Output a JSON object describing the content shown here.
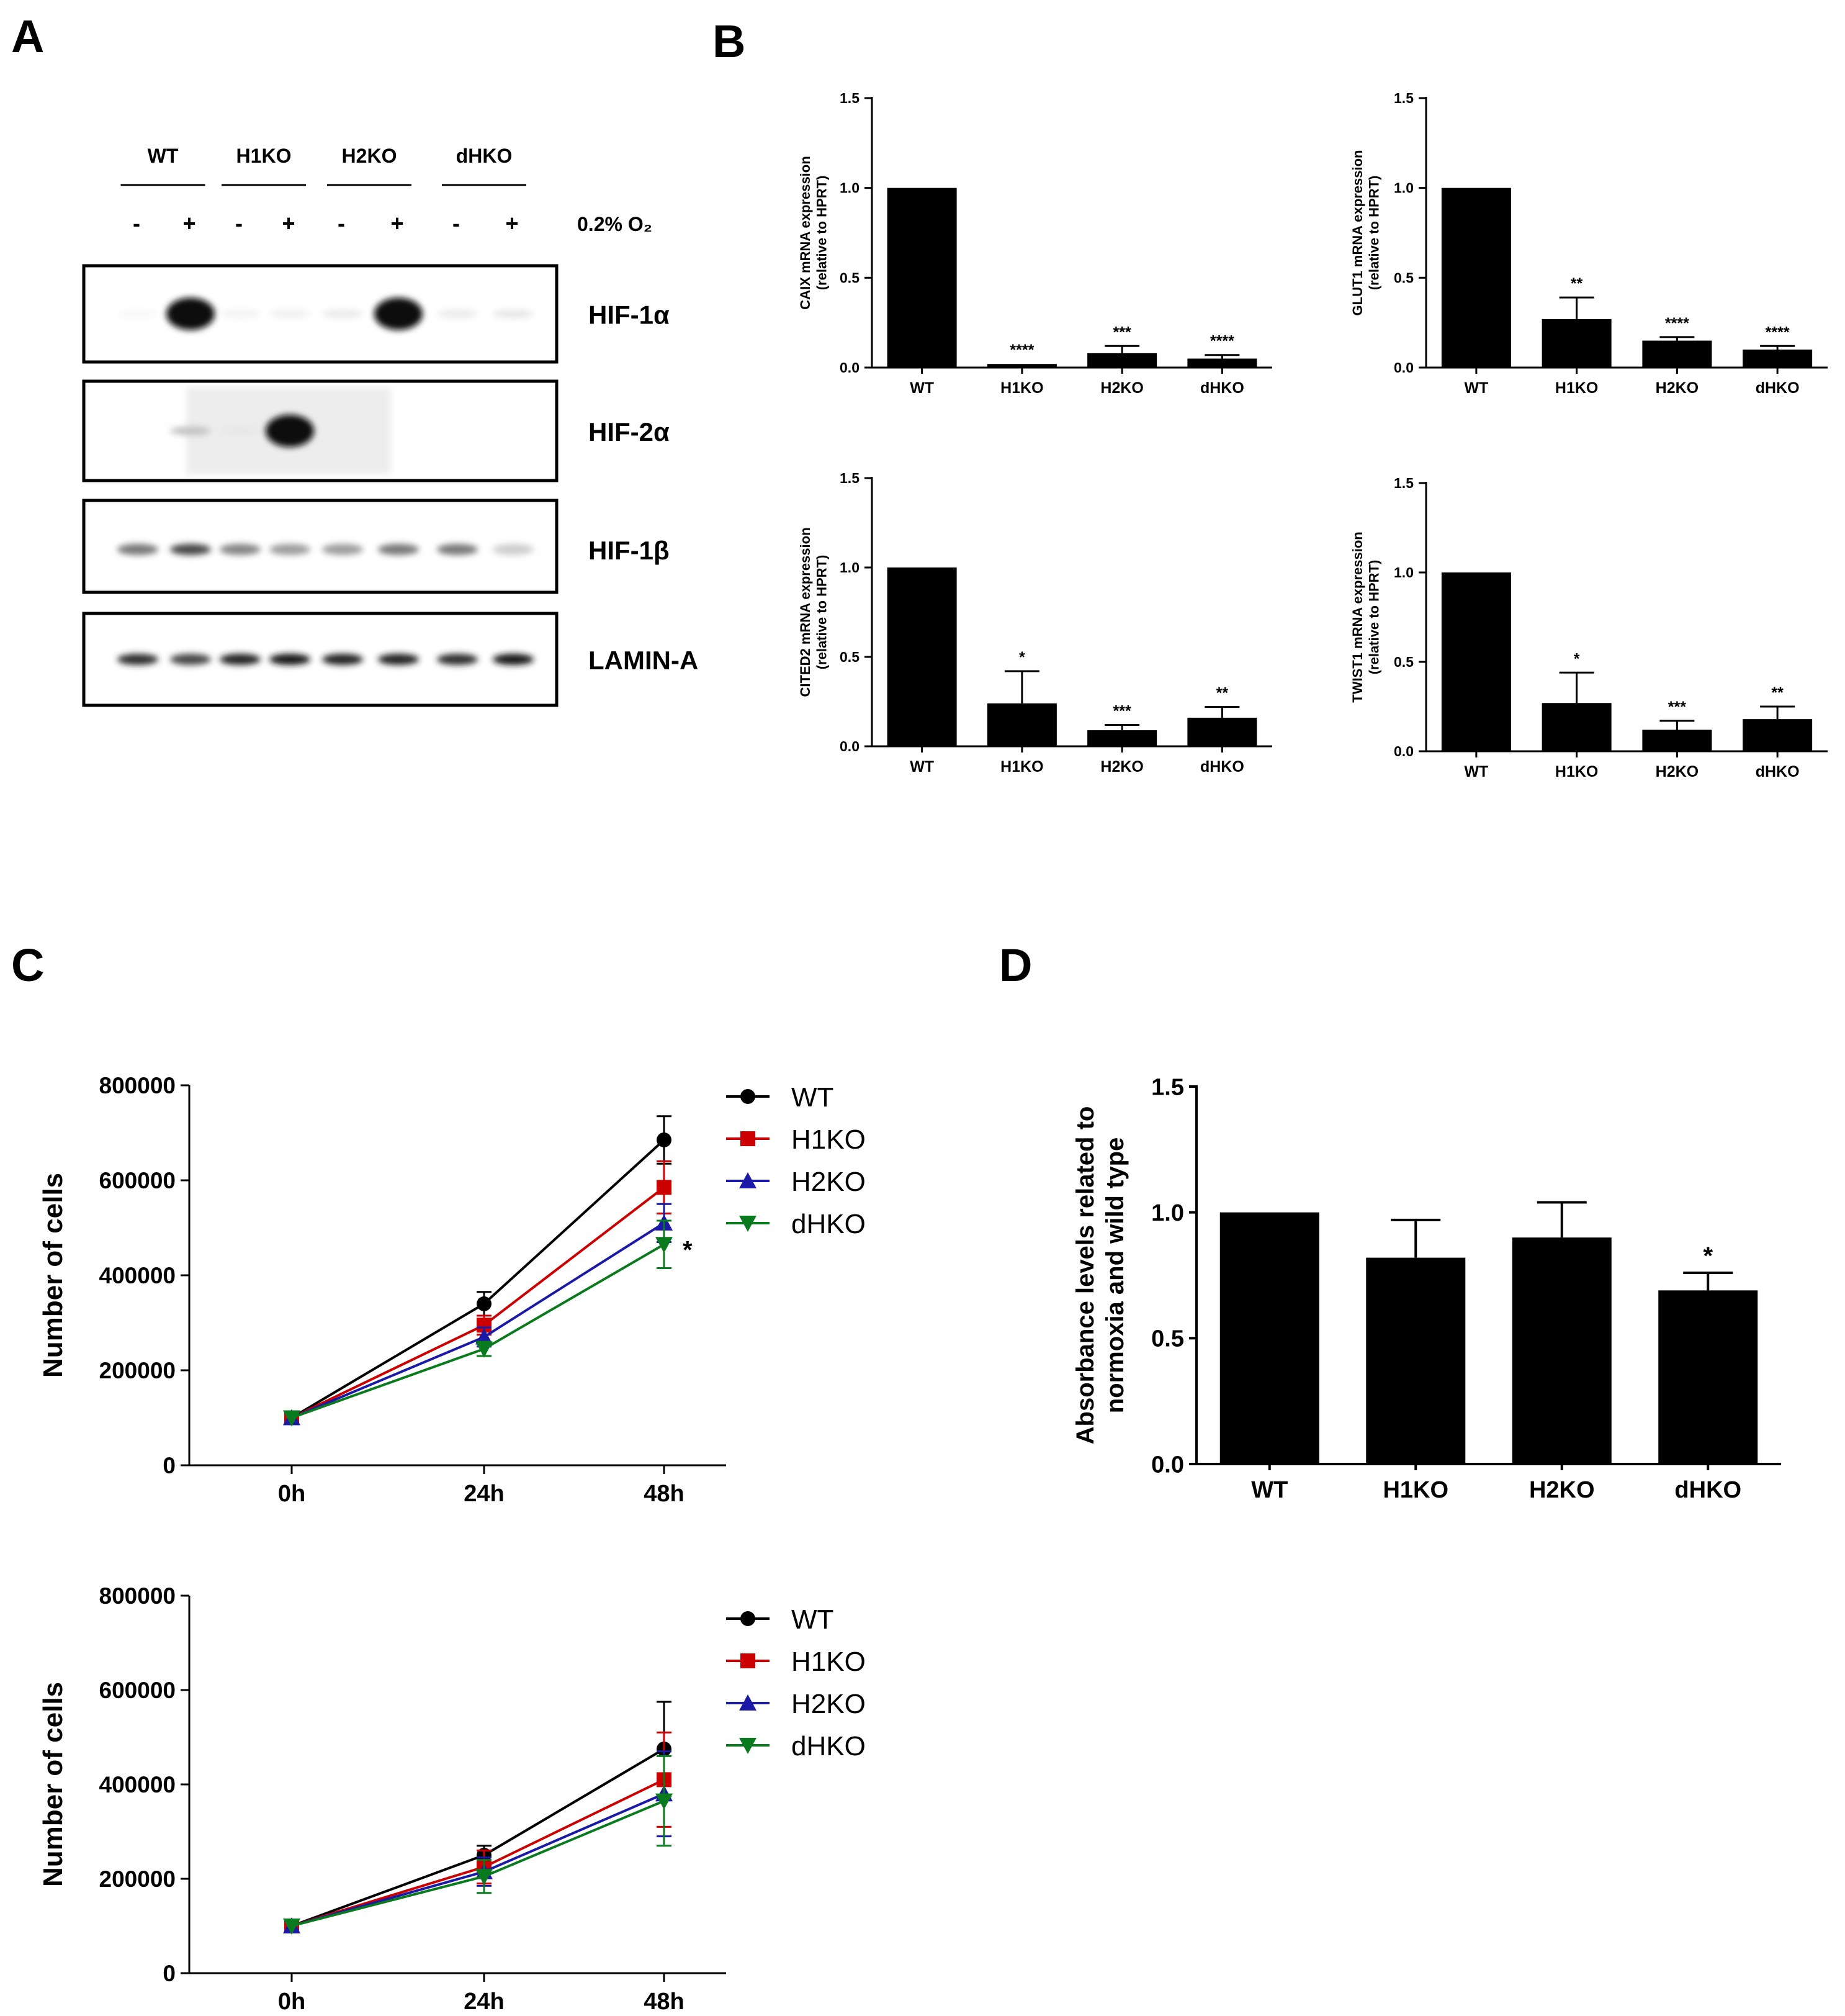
{
  "panels": {
    "a": "A",
    "b": "B",
    "c": "C",
    "d": "D"
  },
  "western_blot": {
    "groups": [
      "WT",
      "H1KO",
      "H2KO",
      "dHKO"
    ],
    "treatment_signs": [
      "-",
      "+",
      "-",
      "+",
      "-",
      "+",
      "-",
      "+"
    ],
    "condition_label": "0.2% O₂",
    "blots": [
      {
        "label": "HIF-1α",
        "band_intensity": [
          0.03,
          1.0,
          0.05,
          0.06,
          0.08,
          1.0,
          0.08,
          0.1
        ]
      },
      {
        "label": "HIF-2α",
        "band_intensity": [
          0.0,
          0.25,
          0.1,
          1.0,
          0.0,
          0.0,
          0.0,
          0.0
        ]
      },
      {
        "label": "HIF-1β",
        "band_intensity": [
          0.55,
          0.75,
          0.5,
          0.4,
          0.4,
          0.55,
          0.55,
          0.2
        ]
      },
      {
        "label": "LAMIN-A",
        "band_intensity": [
          0.85,
          0.75,
          0.9,
          0.95,
          0.9,
          0.9,
          0.85,
          0.95
        ]
      }
    ]
  },
  "chart_data": [
    {
      "type": "bar",
      "panel": "B",
      "ylabel": "CAIX mRNA expression (relative to HPRT)",
      "ylabel_line1": "CAIX mRNA expression",
      "ylabel_line2": "(relative to HPRT)",
      "categories": [
        "WT",
        "H1KO",
        "H2KO",
        "dHKO"
      ],
      "values": [
        1.0,
        0.02,
        0.08,
        0.05
      ],
      "errors": [
        0,
        0.0,
        0.04,
        0.02
      ],
      "significance": [
        "",
        "****",
        "***",
        "****"
      ],
      "ylim": [
        0,
        1.5
      ],
      "yticks": [
        0.0,
        0.5,
        1.0,
        1.5
      ],
      "ytick_labels": [
        "0.0",
        "0.5",
        "1.0",
        "1.5"
      ]
    },
    {
      "type": "bar",
      "panel": "B",
      "ylabel": "GLUT1 mRNA expression (relative to HPRT)",
      "ylabel_line1": "GLUT1 mRNA expression",
      "ylabel_line2": "(relative to HPRT)",
      "categories": [
        "WT",
        "H1KO",
        "H2KO",
        "dHKO"
      ],
      "values": [
        1.0,
        0.27,
        0.15,
        0.1
      ],
      "errors": [
        0,
        0.12,
        0.02,
        0.02
      ],
      "significance": [
        "",
        "**",
        "****",
        "****"
      ],
      "ylim": [
        0,
        1.5
      ],
      "yticks": [
        0.0,
        0.5,
        1.0,
        1.5
      ],
      "ytick_labels": [
        "0.0",
        "0.5",
        "1.0",
        "1.5"
      ]
    },
    {
      "type": "bar",
      "panel": "B",
      "ylabel": "CITED2 mRNA expression (relative to HPRT)",
      "ylabel_line1": "CITED2 mRNA expression",
      "ylabel_line2": "(relative to HPRT)",
      "categories": [
        "WT",
        "H1KO",
        "H2KO",
        "dHKO"
      ],
      "values": [
        1.0,
        0.24,
        0.09,
        0.16
      ],
      "errors": [
        0,
        0.18,
        0.03,
        0.06
      ],
      "significance": [
        "",
        "*",
        "***",
        "**"
      ],
      "ylim": [
        0,
        1.5
      ],
      "yticks": [
        0.0,
        0.5,
        1.0,
        1.5
      ],
      "ytick_labels": [
        "0.0",
        "0.5",
        "1.0",
        "1.5"
      ]
    },
    {
      "type": "bar",
      "panel": "B",
      "ylabel": "TWIST1 mRNA expression (relative to HPRT)",
      "ylabel_line1": "TWIST1 mRNA expression",
      "ylabel_line2": "(relative to HPRT)",
      "categories": [
        "WT",
        "H1KO",
        "H2KO",
        "dHKO"
      ],
      "values": [
        1.0,
        0.27,
        0.12,
        0.18
      ],
      "errors": [
        0,
        0.17,
        0.05,
        0.07
      ],
      "significance": [
        "",
        "*",
        "***",
        "**"
      ],
      "ylim": [
        0,
        1.5
      ],
      "yticks": [
        0.0,
        0.5,
        1.0,
        1.5
      ],
      "ytick_labels": [
        "0.0",
        "0.5",
        "1.0",
        "1.5"
      ]
    },
    {
      "type": "line",
      "panel": "C",
      "x": [
        "0h",
        "24h",
        "48h"
      ],
      "ylabel": "Number of cells",
      "ylim": [
        0,
        800000
      ],
      "yticks": [
        0,
        200000,
        400000,
        600000,
        800000
      ],
      "ytick_labels": [
        "0",
        "200000",
        "400000",
        "600000",
        "800000"
      ],
      "series": [
        {
          "name": "WT",
          "color": "#000000",
          "marker": "circle",
          "values": [
            100000,
            340000,
            685000
          ],
          "errors": [
            0,
            25000,
            50000
          ]
        },
        {
          "name": "H1KO",
          "color": "#cc0000",
          "marker": "square",
          "values": [
            100000,
            295000,
            585000
          ],
          "errors": [
            0,
            20000,
            55000
          ]
        },
        {
          "name": "H2KO",
          "color": "#1a1aa6",
          "marker": "triangle-up",
          "values": [
            100000,
            270000,
            510000
          ],
          "errors": [
            0,
            20000,
            40000
          ]
        },
        {
          "name": "dHKO",
          "color": "#0a7a1e",
          "marker": "triangle-down",
          "values": [
            100000,
            245000,
            465000
          ],
          "errors": [
            0,
            15000,
            50000
          ]
        }
      ],
      "annotation": "*"
    },
    {
      "type": "line",
      "panel": "C",
      "x": [
        "0h",
        "24h",
        "48h"
      ],
      "ylabel": "Number of cells",
      "ylim": [
        0,
        800000
      ],
      "yticks": [
        0,
        200000,
        400000,
        600000,
        800000
      ],
      "ytick_labels": [
        "0",
        "200000",
        "400000",
        "600000",
        "800000"
      ],
      "series": [
        {
          "name": "WT",
          "color": "#000000",
          "marker": "circle",
          "values": [
            100000,
            250000,
            475000
          ],
          "errors": [
            0,
            20000,
            100000
          ]
        },
        {
          "name": "H1KO",
          "color": "#cc0000",
          "marker": "square",
          "values": [
            100000,
            225000,
            410000
          ],
          "errors": [
            0,
            35000,
            100000
          ]
        },
        {
          "name": "H2KO",
          "color": "#1a1aa6",
          "marker": "triangle-up",
          "values": [
            100000,
            215000,
            380000
          ],
          "errors": [
            0,
            30000,
            90000
          ]
        },
        {
          "name": "dHKO",
          "color": "#0a7a1e",
          "marker": "triangle-down",
          "values": [
            100000,
            205000,
            365000
          ],
          "errors": [
            0,
            35000,
            95000
          ]
        }
      ]
    },
    {
      "type": "bar",
      "panel": "D",
      "ylabel": "Absorbance levels related to normoxia and wild type",
      "ylabel_line1": "Absorbance levels related to",
      "ylabel_line2": "normoxia and wild type",
      "categories": [
        "WT",
        "H1KO",
        "H2KO",
        "dHKO"
      ],
      "values": [
        1.0,
        0.82,
        0.9,
        0.69
      ],
      "errors": [
        0,
        0.15,
        0.14,
        0.07
      ],
      "significance": [
        "",
        "",
        "",
        "*"
      ],
      "ylim": [
        0,
        1.5
      ],
      "yticks": [
        0.0,
        0.5,
        1.0,
        1.5
      ],
      "ytick_labels": [
        "0.0",
        "0.5",
        "1.0",
        "1.5"
      ]
    }
  ]
}
